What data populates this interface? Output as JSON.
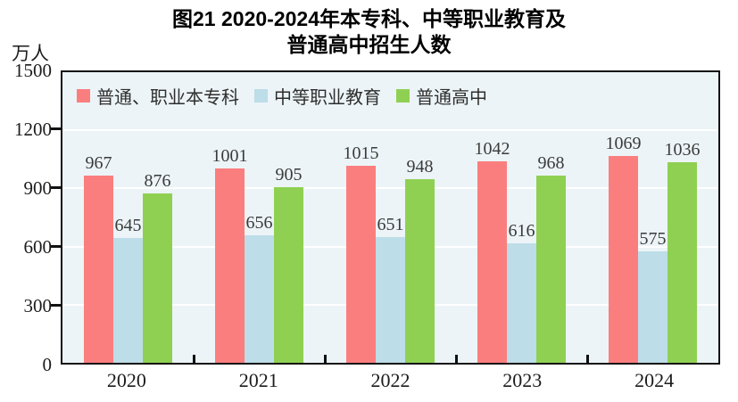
{
  "title": {
    "line1": "图21  2020-2024年本专科、中等职业教育及",
    "line2": "普通高中招生人数"
  },
  "y_axis": {
    "unit": "万人",
    "ticks": [
      "1500",
      "1200",
      "900",
      "600",
      "300",
      "0"
    ]
  },
  "chart_data": {
    "type": "bar",
    "title": "图21 2020-2024年本专科、中等职业教育及普通高中招生人数",
    "xlabel": "",
    "ylabel": "万人",
    "ylim": [
      0,
      1500
    ],
    "ytick_step": 300,
    "grid": true,
    "gridline_color": "#ffffff",
    "plot_background": "#ecf4f7",
    "legend_position": "top-left-inside",
    "categories": [
      "2020",
      "2021",
      "2022",
      "2023",
      "2024"
    ],
    "series": [
      {
        "id": "higher-education",
        "name": "普通、职业本专科",
        "color": "#fb7e7e",
        "values": [
          967,
          1001,
          1015,
          1042,
          1069
        ]
      },
      {
        "id": "secondary-vocational",
        "name": "中等职业教育",
        "color": "#bddde8",
        "values": [
          645,
          656,
          651,
          616,
          575
        ]
      },
      {
        "id": "regular-high-school",
        "name": "普通高中",
        "color": "#8fd053",
        "values": [
          876,
          905,
          948,
          968,
          1036
        ]
      }
    ]
  }
}
